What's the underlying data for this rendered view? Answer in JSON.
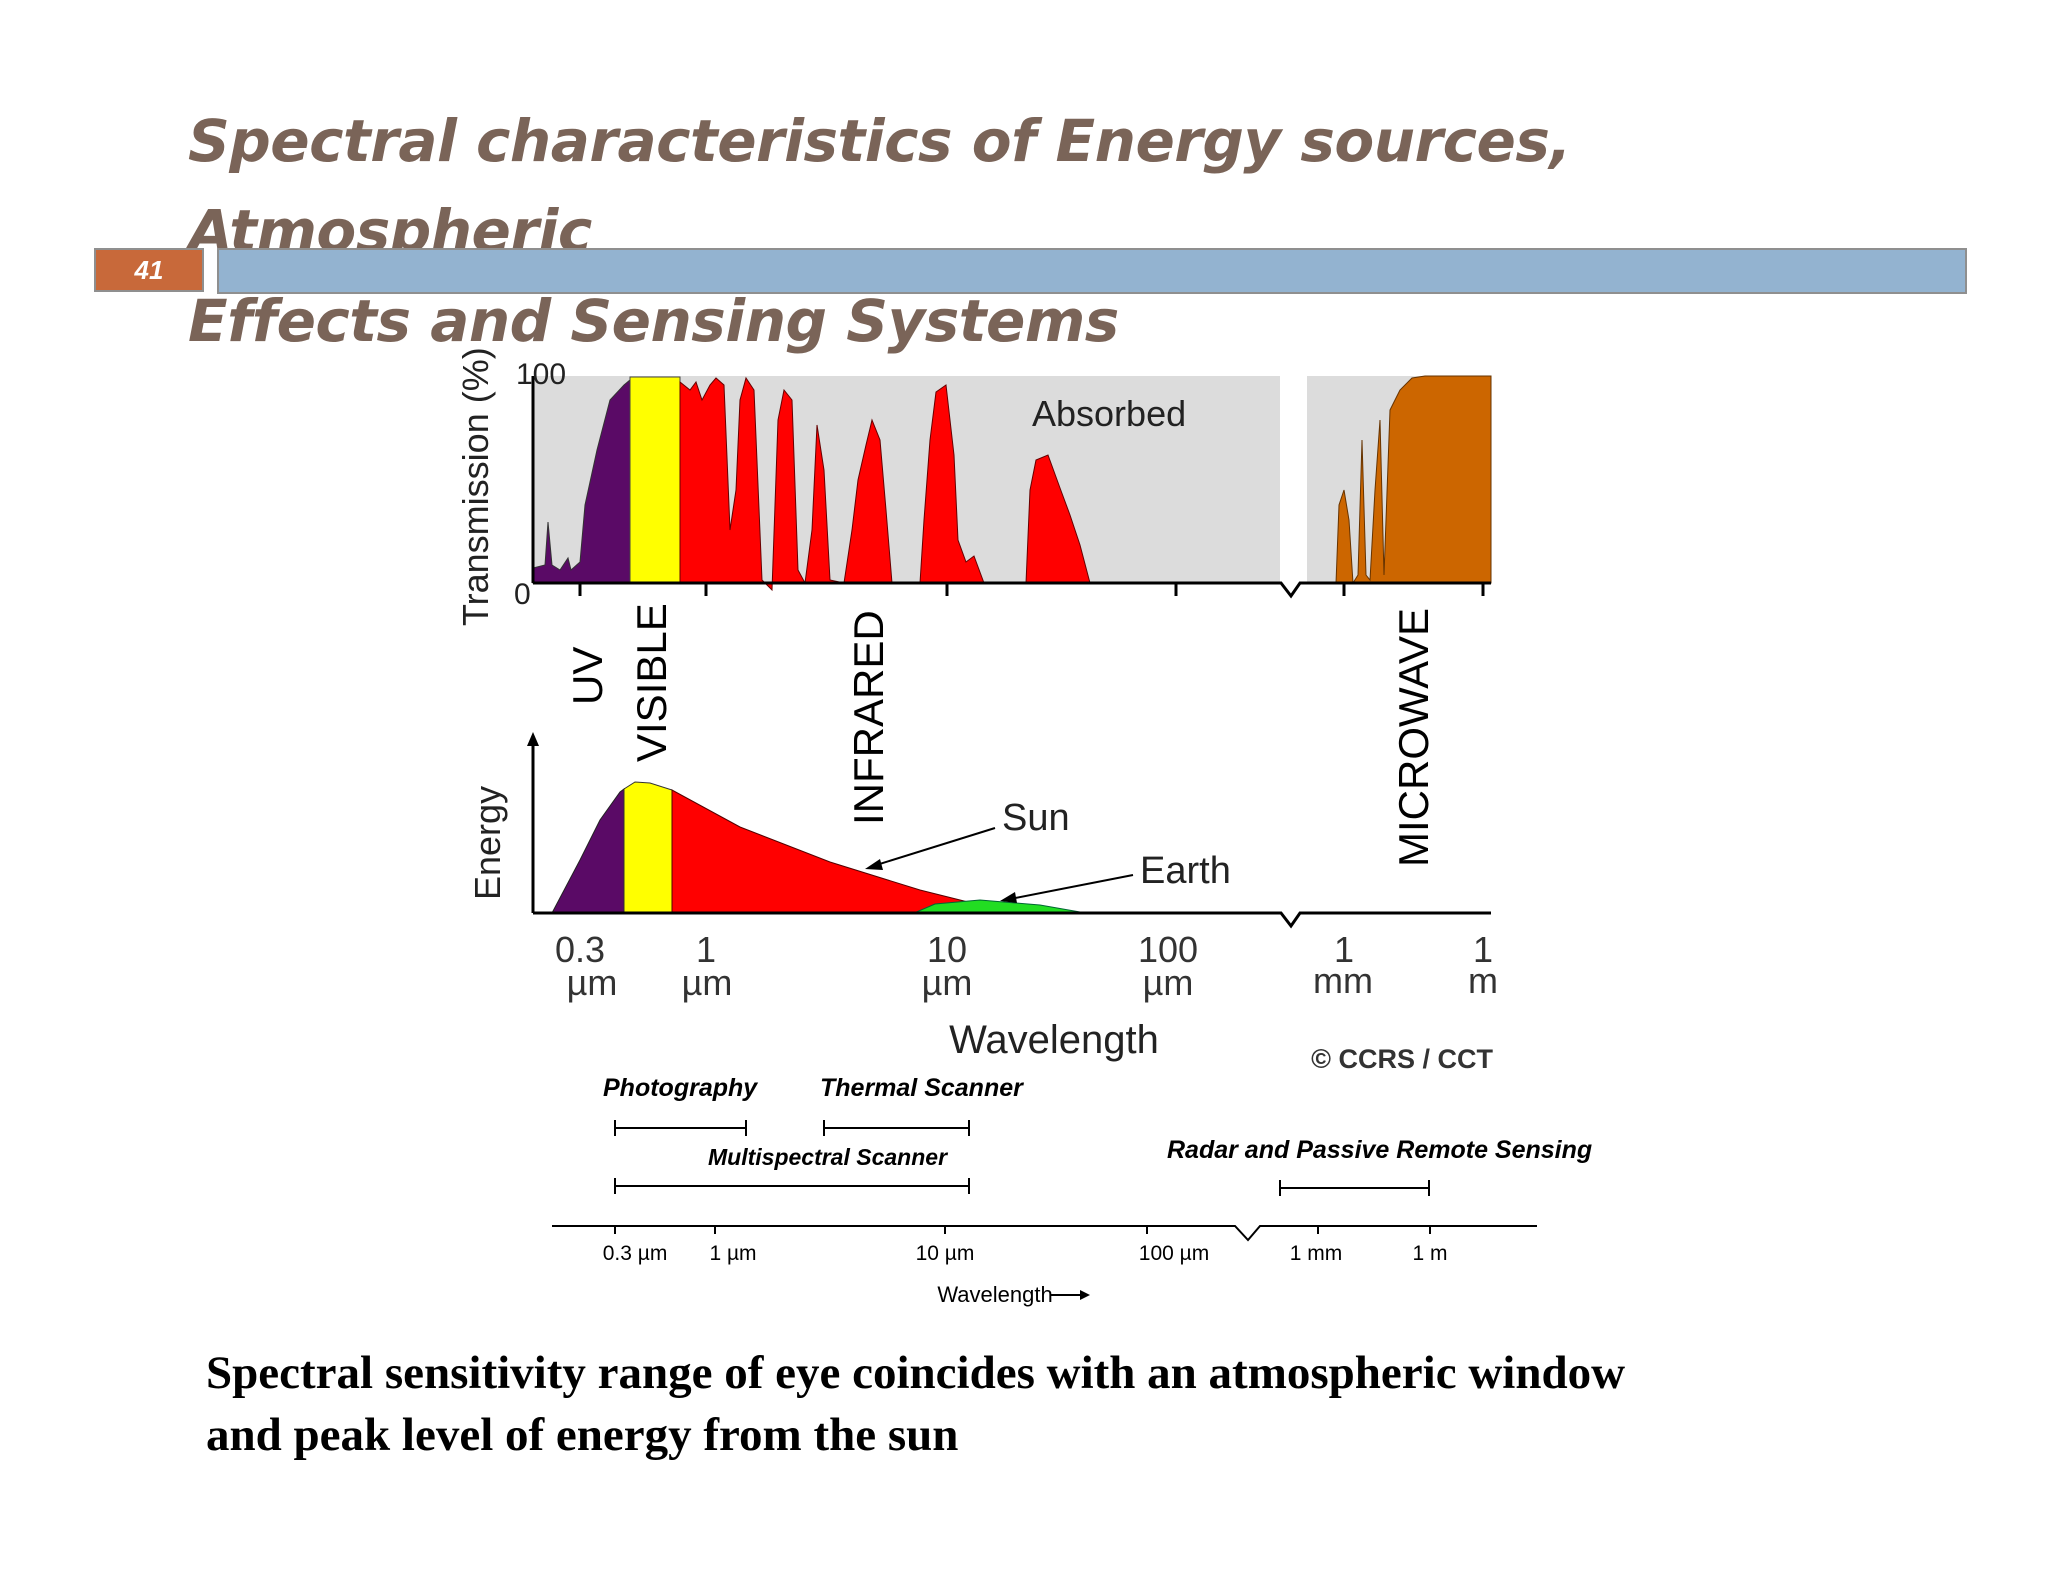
{
  "slide": {
    "title_line1": "Spectral characteristics of Energy sources, Atmospheric",
    "title_line2": "Effects and Sensing Systems",
    "number": "41"
  },
  "colors": {
    "title": "#7a6458",
    "number_box": "#c8693a",
    "title_bar": "#93b3d0",
    "absorbed": "#dcdcdc",
    "uv": "#5a0a66",
    "visible": "#ffff00",
    "infrared": "#ff0000",
    "microwave": "#cc6600",
    "earth": "#22dd22"
  },
  "transmission_panel": {
    "y_axis_label": "Transmission (%)",
    "y_max_label": "100",
    "y_min_label": "0",
    "absorbed_label": "Absorbed"
  },
  "bands": {
    "uv": "UV",
    "visible": "VISIBLE",
    "infrared": "INFRARED",
    "microwave": "MICROWAVE"
  },
  "energy_panel": {
    "y_axis_label": "Energy",
    "sun_label": "Sun",
    "earth_label": "Earth"
  },
  "wavelength_ticks": [
    {
      "value": "0.3",
      "unit": "µm"
    },
    {
      "value": "1",
      "unit": "µm"
    },
    {
      "value": "10",
      "unit": "µm"
    },
    {
      "value": "100",
      "unit": "µm"
    },
    {
      "value": "1",
      "unit": "mm"
    },
    {
      "value": "1",
      "unit": "m"
    }
  ],
  "wavelength_label": "Wavelength",
  "copyright": "© CCRS / CCT",
  "sensing_systems": {
    "photography": "Photography",
    "thermal_scanner": "Thermal Scanner",
    "multispectral_scanner": "Multispectral Scanner",
    "radar": "Radar and Passive Remote Sensing",
    "ticks": [
      "0.3 µm",
      "1 µm",
      "10 µm",
      "100 µm",
      "1 mm",
      "1 m"
    ],
    "wavelength_label": "Wavelength"
  },
  "caption": {
    "line1": "Spectral sensitivity range of eye coincides with an atmospheric window",
    "line2": "and peak level of energy from the sun"
  }
}
